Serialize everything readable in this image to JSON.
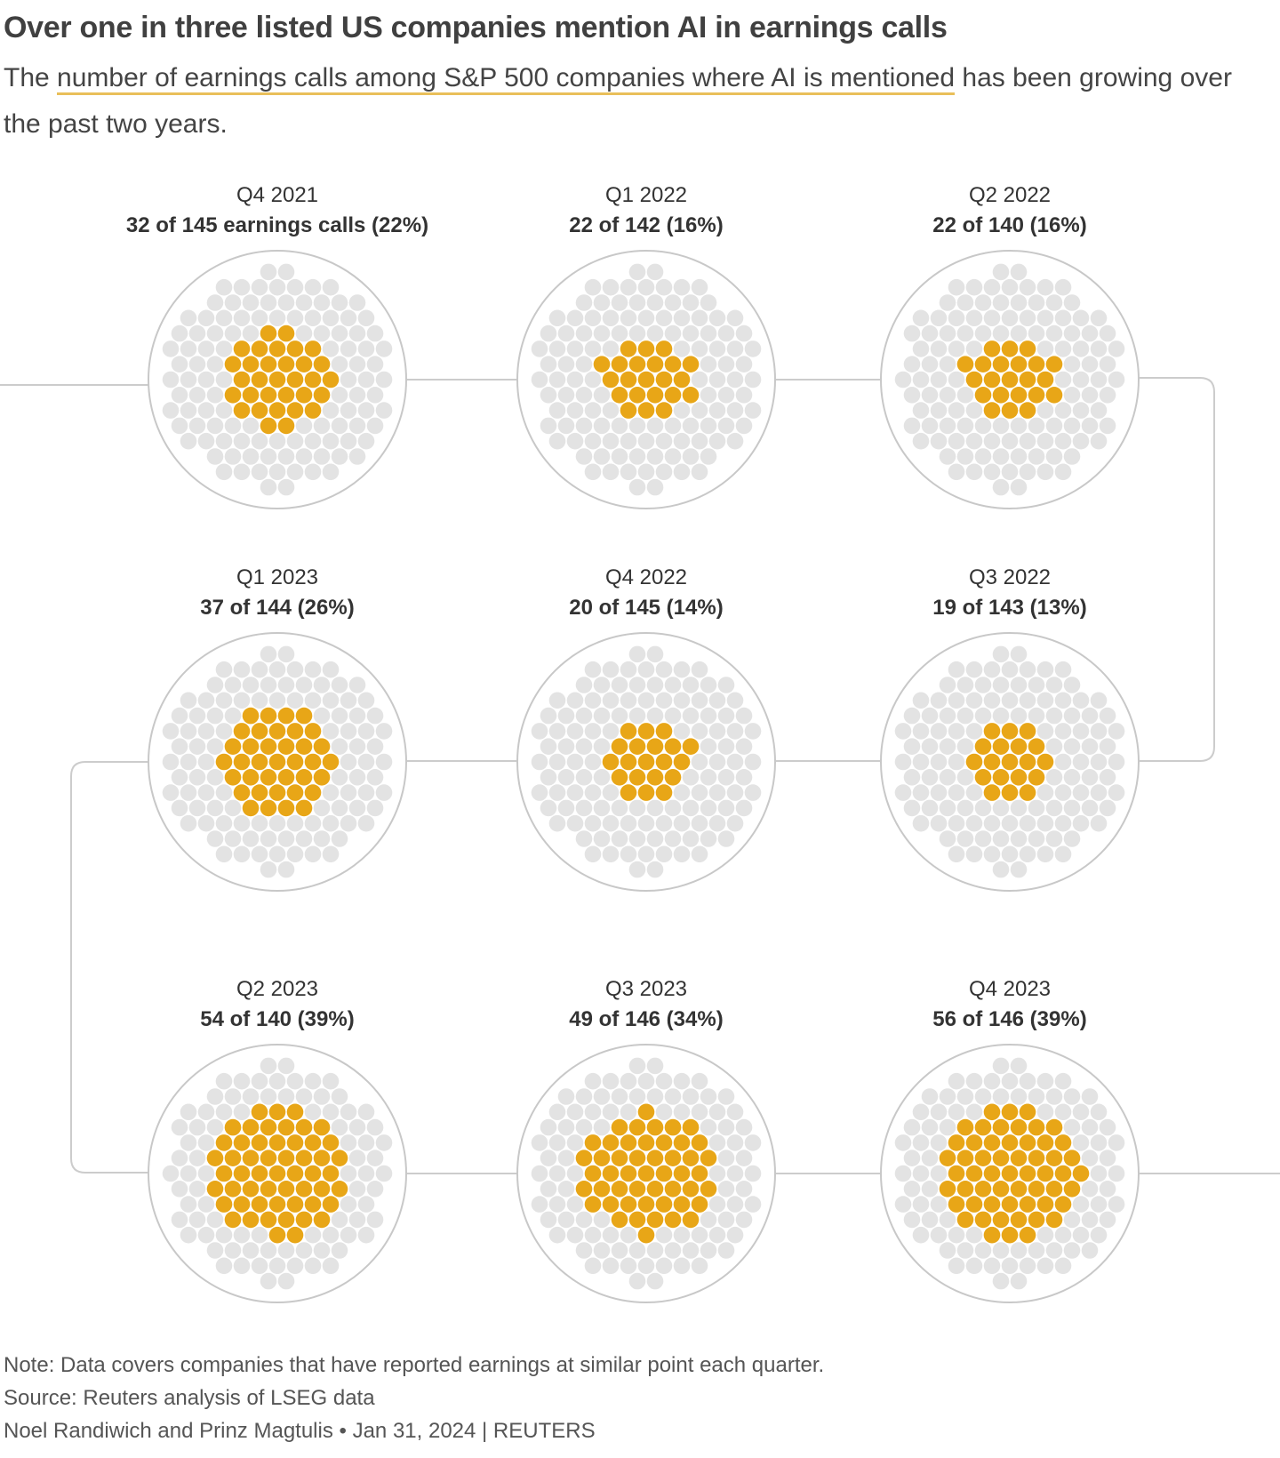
{
  "header": {
    "title": "Over one in three listed US companies mention AI in earnings calls",
    "subtitle_pre": "The ",
    "subtitle_highlight": "number of earnings calls among S&P 500 companies where AI is mentioned",
    "subtitle_post": " has been growing over the past two years."
  },
  "chart_data": {
    "type": "dot-matrix",
    "colors": {
      "mentioned": "#e8a617",
      "not_mentioned": "#e3e3e3",
      "ring": "#c8c8c8",
      "connector": "#cccccc"
    },
    "panels": [
      {
        "period": "Q4 2021",
        "label": "32 of 145 earnings calls (22%)",
        "mentioned": 32,
        "total": 145,
        "percent": 22
      },
      {
        "period": "Q1 2022",
        "label": "22 of 142 (16%)",
        "mentioned": 22,
        "total": 142,
        "percent": 16
      },
      {
        "period": "Q2 2022",
        "label": "22 of 140 (16%)",
        "mentioned": 22,
        "total": 140,
        "percent": 16
      },
      {
        "period": "Q3 2022",
        "label": "19 of 143 (13%)",
        "mentioned": 19,
        "total": 143,
        "percent": 13
      },
      {
        "period": "Q4 2022",
        "label": "20 of 145 (14%)",
        "mentioned": 20,
        "total": 145,
        "percent": 14
      },
      {
        "period": "Q1 2023",
        "label": "37 of 144 (26%)",
        "mentioned": 37,
        "total": 144,
        "percent": 26
      },
      {
        "period": "Q2 2023",
        "label": "54 of 140 (39%)",
        "mentioned": 54,
        "total": 140,
        "percent": 39
      },
      {
        "period": "Q3 2023",
        "label": "49 of 146 (34%)",
        "mentioned": 49,
        "total": 146,
        "percent": 34
      },
      {
        "period": "Q4 2023",
        "label": "56 of 146 (39%)",
        "mentioned": 56,
        "total": 146,
        "percent": 39
      }
    ]
  },
  "footer": {
    "note": "Note: Data covers companies that have reported earnings at similar point each quarter.",
    "source": "Source: Reuters analysis of LSEG data",
    "credit": "Noel Randiwich and Prinz Magtulis • Jan 31, 2024 | REUTERS"
  }
}
